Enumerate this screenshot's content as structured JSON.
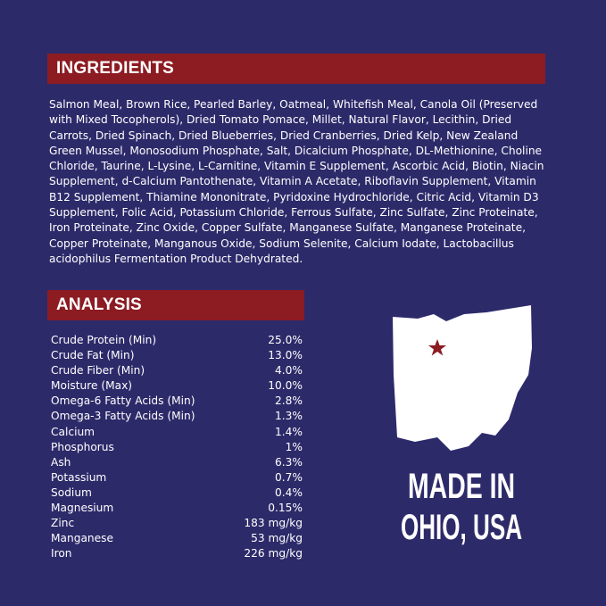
{
  "ingredients": {
    "title": "INGREDIENTS",
    "lines": [
      "Salmon Meal, Brown Rice, Pearled Barley, Oatmeal, Whitefish Meal, Canola Oil (Preserved",
      "with Mixed Tocopherols), Dried Tomato Pomace, Millet, Natural Flavor, Lecithin, Dried",
      "Carrots, Dried Spinach, Dried Blueberries, Dried Cranberries, Dried Kelp, New Zealand",
      "Green Mussel, Monosodium Phosphate, Salt, Dicalcium Phosphate, DL-Methionine, Choline",
      "Chloride, Taurine, L-Lysine, L-Carnitine, Vitamin E Supplement, Ascorbic Acid, Biotin, Niacin",
      "Supplement, d-Calcium Pantothenate, Vitamin A Acetate, Riboflavin Supplement, Vitamin",
      "B12 Supplement, Thiamine Mononitrate, Pyridoxine Hydrochloride, Citric Acid, Vitamin D3",
      "Supplement, Folic Acid, Potassium Chloride, Ferrous Sulfate, Zinc Sulfate, Zinc Proteinate,",
      "Iron Proteinate, Zinc Oxide, Copper Sulfate, Manganese Sulfate, Manganese Proteinate,",
      "Copper Proteinate, Manganous Oxide, Sodium Selenite, Calcium Iodate, Lactobacillus",
      "acidophilus Fermentation Product Dehydrated."
    ]
  },
  "analysis": {
    "title": "ANALYSIS",
    "rows": [
      [
        "Crude Protein (Min)",
        "25.0%"
      ],
      [
        "Crude Fat (Min)",
        "13.0%"
      ],
      [
        "Crude Fiber (Min)",
        "4.0%"
      ],
      [
        "Moisture (Max)",
        "10.0%"
      ],
      [
        "Omega-6 Fatty Acids (Min)",
        "2.8%"
      ],
      [
        "Omega-3 Fatty Acids (Min)",
        "1.3%"
      ],
      [
        "Calcium",
        "1.4%"
      ],
      [
        "Phosphorus",
        "1%"
      ],
      [
        "Ash",
        "6.3%"
      ],
      [
        "Potassium",
        "0.7%"
      ],
      [
        "Sodium",
        "0.4%"
      ],
      [
        "Magnesium",
        "0.15%"
      ],
      [
        "Zinc",
        "183 mg/kg"
      ],
      [
        "Manganese",
        "53 mg/kg"
      ],
      [
        "Iron",
        "226 mg/kg"
      ]
    ]
  },
  "badge": {
    "line1": "MADE IN",
    "line2": "OHIO, USA"
  }
}
